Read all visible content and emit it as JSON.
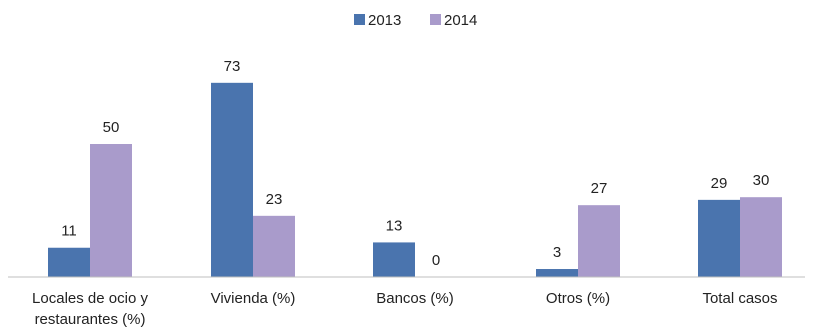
{
  "chart_data": {
    "type": "bar",
    "categories": [
      [
        "Locales de ocio y",
        "restaurantes (%)"
      ],
      [
        "Vivienda (%)"
      ],
      [
        "Bancos (%)"
      ],
      [
        "Otros (%)"
      ],
      [
        "Total casos"
      ]
    ],
    "series": [
      {
        "name": "2013",
        "color": "#4a74ae",
        "values": [
          11,
          73,
          13,
          3,
          29
        ]
      },
      {
        "name": "2014",
        "color": "#a99bcb",
        "values": [
          50,
          23,
          0,
          27,
          30
        ]
      }
    ],
    "ylim": [
      0,
      80
    ],
    "legend_position": "top-center",
    "grid": false
  }
}
